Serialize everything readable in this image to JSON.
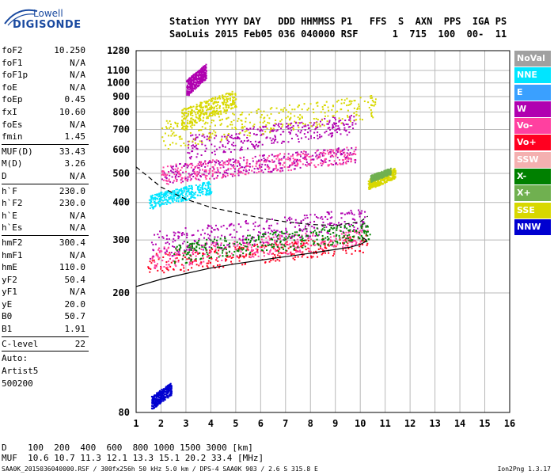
{
  "logo": {
    "line1": "Lowell",
    "line2": "DIGISONDE"
  },
  "header": {
    "labels": "Station YYYY DAY   DDD HHMMSS P1   FFS  S  AXN  PPS  IGA PS",
    "values": "SaoLuis 2015 Feb05 036 040000 RSF      1  715  100  00-  11"
  },
  "params": [
    {
      "k": "foF2",
      "v": "10.250"
    },
    {
      "k": "foF1",
      "v": "N/A"
    },
    {
      "k": "foF1p",
      "v": "N/A"
    },
    {
      "k": "foE",
      "v": "N/A"
    },
    {
      "k": "foEp",
      "v": "0.45"
    },
    {
      "k": "fxI",
      "v": "10.60"
    },
    {
      "k": "foEs",
      "v": "N/A"
    },
    {
      "k": "fmin",
      "v": "1.45"
    },
    {
      "sep": true
    },
    {
      "k": "MUF(D)",
      "v": "33.43"
    },
    {
      "k": "M(D)",
      "v": "3.26"
    },
    {
      "k": "D",
      "v": "N/A"
    },
    {
      "sep": true
    },
    {
      "k": "h`F",
      "v": "230.0"
    },
    {
      "k": "h`F2",
      "v": "230.0"
    },
    {
      "k": "h`E",
      "v": "N/A"
    },
    {
      "k": "h`Es",
      "v": "N/A"
    },
    {
      "sep": true
    },
    {
      "k": "hmF2",
      "v": "300.4"
    },
    {
      "k": "hmF1",
      "v": "N/A"
    },
    {
      "k": "hmE",
      "v": "110.0"
    },
    {
      "k": "yF2",
      "v": "50.4"
    },
    {
      "k": "yF1",
      "v": "N/A"
    },
    {
      "k": "yE",
      "v": "20.0"
    },
    {
      "k": "B0",
      "v": "50.7"
    },
    {
      "k": "B1",
      "v": "1.91"
    },
    {
      "sep": true
    },
    {
      "k": "C-level",
      "v": "22"
    },
    {
      "sep": true
    }
  ],
  "artist": [
    "Auto:",
    "Artist5",
    "500200"
  ],
  "legend": [
    {
      "label": "NoVal",
      "color": "#a0a0a0"
    },
    {
      "label": "NNE",
      "color": "#00e5ff"
    },
    {
      "label": "E",
      "color": "#3aa0ff"
    },
    {
      "label": "W",
      "color": "#b000b0"
    },
    {
      "label": "Vo-",
      "color": "#ff40a0"
    },
    {
      "label": "Vo+",
      "color": "#ff0020"
    },
    {
      "label": "SSW",
      "color": "#f4b0b0"
    },
    {
      "label": "X-",
      "color": "#008000"
    },
    {
      "label": "X+",
      "color": "#70b050"
    },
    {
      "label": "SSE",
      "color": "#d8d800"
    },
    {
      "label": "NNW",
      "color": "#0000d0"
    }
  ],
  "footer": {
    "line1": "D    100  200  400  600  800 1000 1500 3000 [km]",
    "line2": "MUF  10.6 10.7 11.3 12.1 13.3 15.1 20.2 33.4 [MHz]",
    "line3": "SAA0K_2015036040000.RSF / 300fx256h 50 kHz 5.0 km / DPS-4 SAA0K 903 / 2.6 S 315.8 E",
    "version": "Ion2Png 1.3.17"
  },
  "chart_data": {
    "type": "scatter",
    "xlim": [
      1,
      16
    ],
    "ylim": [
      80,
      1280
    ],
    "xticks": [
      "1",
      "2",
      "3",
      "4",
      "5",
      "6",
      "7",
      "8",
      "9",
      "10",
      "11",
      "12",
      "13",
      "14",
      "15",
      "16"
    ],
    "yticks": [
      80,
      200,
      300,
      400,
      500,
      600,
      700,
      800,
      900,
      1000,
      1100,
      1280
    ],
    "yscale": "log",
    "grid": true,
    "profile_curve": {
      "x": [
        1.0,
        2.0,
        3.0,
        4.0,
        5.0,
        6.0,
        7.0,
        8.0,
        9.0,
        9.6,
        10.0,
        10.2,
        10.25,
        10.1
      ],
      "y": [
        210,
        222,
        232,
        242,
        250,
        257,
        264,
        271,
        279,
        284,
        290,
        296,
        300,
        305
      ]
    },
    "muf_curve": {
      "x": [
        1.0,
        2.0,
        3.0,
        4.0,
        5.0,
        6.0,
        7.0,
        8.0,
        9.0,
        10.0,
        10.3
      ],
      "y": [
        525,
        450,
        410,
        385,
        370,
        355,
        345,
        338,
        335,
        345,
        360
      ]
    },
    "clusters": [
      {
        "name": "F-trace",
        "x": [
          1.4,
          10.3
        ],
        "y": [
          230,
          310
        ],
        "color": "#ff0020"
      },
      {
        "name": "F-trace-2",
        "x": [
          1.6,
          10.3
        ],
        "y": [
          240,
          330
        ],
        "color": "#ff40a0"
      },
      {
        "name": "spread",
        "x": [
          1.5,
          10.2
        ],
        "y": [
          260,
          380
        ],
        "color": "#b000b0"
      },
      {
        "name": "x-trace",
        "x": [
          2.5,
          10.4
        ],
        "y": [
          250,
          340
        ],
        "color": "#008000"
      },
      {
        "name": "echoes-lo",
        "x": [
          1.5,
          4.0
        ],
        "y": [
          380,
          470
        ],
        "color": "#00e5ff"
      },
      {
        "name": "second-hop",
        "x": [
          2.0,
          9.8
        ],
        "y": [
          460,
          610
        ],
        "color": "#b000b0"
      },
      {
        "name": "second-hop-2",
        "x": [
          2.0,
          9.8
        ],
        "y": [
          460,
          610
        ],
        "color": "#ff40a0"
      },
      {
        "name": "third-hop",
        "x": [
          3.0,
          9.8
        ],
        "y": [
          560,
          780
        ],
        "color": "#b000b0"
      },
      {
        "name": "upper",
        "x": [
          2.8,
          5.0
        ],
        "y": [
          700,
          940
        ],
        "color": "#d8d800"
      },
      {
        "name": "top",
        "x": [
          3.0,
          3.8
        ],
        "y": [
          900,
          1150
        ],
        "color": "#b000b0"
      },
      {
        "name": "sse-blob",
        "x": [
          10.3,
          11.4
        ],
        "y": [
          440,
          520
        ],
        "color": "#d8d800"
      },
      {
        "name": "x-blob",
        "x": [
          10.4,
          11.2
        ],
        "y": [
          470,
          520
        ],
        "color": "#70b050"
      },
      {
        "name": "sparse-hi",
        "x": [
          2.0,
          10.6
        ],
        "y": [
          600,
          900
        ],
        "color": "#d8d800"
      },
      {
        "name": "nnw-lo",
        "x": [
          1.6,
          2.4
        ],
        "y": [
          82,
          100
        ],
        "color": "#0000d0"
      }
    ]
  }
}
